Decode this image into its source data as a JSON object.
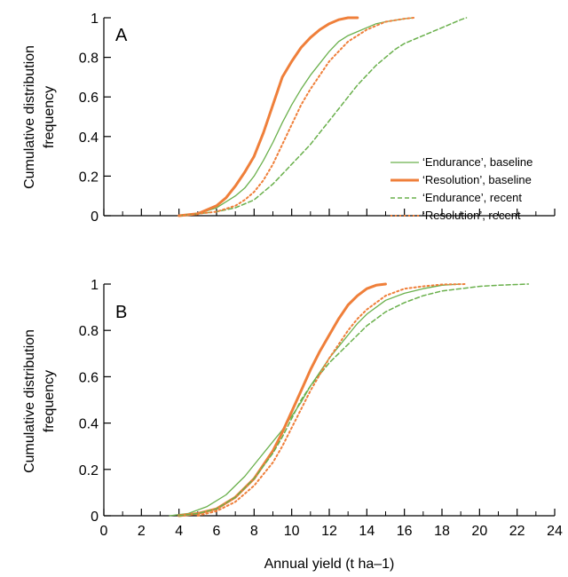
{
  "chart_data": {
    "type": "line",
    "x_axis": {
      "label": "Annual yield (t ha–1)",
      "range": [
        0,
        24
      ],
      "ticks": [
        0,
        2,
        4,
        6,
        8,
        10,
        12,
        14,
        16,
        18,
        20,
        22,
        24
      ]
    },
    "y_axis": {
      "label_line1": "Cumulative distribution",
      "label_line2": "frequency",
      "range": [
        0,
        1
      ],
      "ticks": [
        0,
        0.2,
        0.4,
        0.6,
        0.8,
        1
      ],
      "tick_labels": [
        "0",
        "0.2",
        "0.4",
        "0.6",
        "0.8",
        "1"
      ]
    },
    "grid": false,
    "legend": {
      "placement": "inside-right of panel A",
      "entries": [
        {
          "label": "‘Endurance’, baseline",
          "color": "#6ab04c",
          "style": "solid-thin"
        },
        {
          "label": "‘Resolution’, baseline",
          "color": "#ef7f3a",
          "style": "solid-thick"
        },
        {
          "label": "‘Endurance’, recent",
          "color": "#6ab04c",
          "style": "dashed"
        },
        {
          "label": "‘Resolution’, recent",
          "color": "#ef7f3a",
          "style": "dotted"
        }
      ]
    },
    "panels": [
      {
        "label": "A",
        "series": [
          {
            "legend_index": 0,
            "x": [
              4,
              5,
              6,
              7,
              7.5,
              8,
              8.5,
              9,
              9.5,
              10,
              10.5,
              11,
              11.5,
              12,
              12.5,
              13,
              13.5,
              14,
              14.5,
              15,
              16,
              16.5
            ],
            "y": [
              0,
              0.01,
              0.04,
              0.1,
              0.14,
              0.2,
              0.28,
              0.37,
              0.47,
              0.56,
              0.64,
              0.71,
              0.77,
              0.83,
              0.88,
              0.91,
              0.93,
              0.95,
              0.97,
              0.98,
              0.995,
              1
            ]
          },
          {
            "legend_index": 1,
            "x": [
              4,
              5,
              6,
              6.5,
              7,
              7.5,
              8,
              8.5,
              9,
              9.5,
              10,
              10.5,
              11,
              11.5,
              12,
              12.5,
              13,
              13.5
            ],
            "y": [
              0,
              0.01,
              0.05,
              0.09,
              0.15,
              0.22,
              0.3,
              0.42,
              0.56,
              0.7,
              0.78,
              0.85,
              0.9,
              0.94,
              0.97,
              0.99,
              1,
              1
            ]
          },
          {
            "legend_index": 2,
            "x": [
              4,
              5,
              6,
              7,
              8,
              8.5,
              9,
              9.5,
              10,
              10.5,
              11,
              11.5,
              12,
              12.5,
              13,
              13.5,
              14,
              14.5,
              15,
              15.5,
              16,
              16.5,
              17,
              17.5,
              18,
              18.5,
              19,
              19.3
            ],
            "y": [
              0,
              0.01,
              0.02,
              0.04,
              0.08,
              0.12,
              0.16,
              0.21,
              0.26,
              0.31,
              0.36,
              0.42,
              0.48,
              0.54,
              0.6,
              0.66,
              0.71,
              0.76,
              0.8,
              0.84,
              0.87,
              0.89,
              0.91,
              0.93,
              0.95,
              0.97,
              0.99,
              1
            ]
          },
          {
            "legend_index": 3,
            "x": [
              4,
              5,
              6,
              7,
              7.5,
              8,
              8.5,
              9,
              9.5,
              10,
              10.5,
              11,
              11.5,
              12,
              12.5,
              13,
              13.5,
              14,
              14.5,
              15,
              16,
              16.5
            ],
            "y": [
              0,
              0.01,
              0.02,
              0.05,
              0.08,
              0.12,
              0.18,
              0.26,
              0.36,
              0.46,
              0.56,
              0.64,
              0.71,
              0.78,
              0.83,
              0.88,
              0.91,
              0.94,
              0.96,
              0.98,
              0.995,
              1
            ]
          }
        ]
      },
      {
        "label": "B",
        "series": [
          {
            "legend_index": 0,
            "x": [
              3.5,
              4.5,
              5.5,
              6.5,
              7.5,
              8.5,
              9.5,
              10,
              10.5,
              11,
              11.5,
              12,
              12.5,
              13,
              13.5,
              14,
              15,
              16,
              17,
              18,
              19
            ],
            "y": [
              0,
              0.01,
              0.04,
              0.09,
              0.17,
              0.27,
              0.37,
              0.43,
              0.49,
              0.56,
              0.62,
              0.68,
              0.73,
              0.78,
              0.83,
              0.87,
              0.93,
              0.96,
              0.98,
              0.995,
              1
            ]
          },
          {
            "legend_index": 1,
            "x": [
              4,
              5,
              6,
              7,
              8,
              9,
              9.5,
              10,
              10.5,
              11,
              11.5,
              12,
              12.5,
              13,
              13.5,
              14,
              14.5,
              15
            ],
            "y": [
              0,
              0.01,
              0.03,
              0.08,
              0.16,
              0.28,
              0.36,
              0.45,
              0.54,
              0.63,
              0.71,
              0.78,
              0.85,
              0.91,
              0.95,
              0.98,
              0.995,
              1
            ]
          },
          {
            "legend_index": 2,
            "x": [
              4,
              5,
              6,
              7,
              8,
              9,
              9.5,
              10,
              10.5,
              11,
              11.5,
              12,
              12.5,
              13,
              13.5,
              14,
              15,
              16,
              17,
              18,
              19,
              20,
              21,
              22,
              22.6
            ],
            "y": [
              0,
              0.01,
              0.03,
              0.08,
              0.16,
              0.27,
              0.34,
              0.42,
              0.5,
              0.56,
              0.61,
              0.66,
              0.7,
              0.74,
              0.78,
              0.82,
              0.88,
              0.92,
              0.95,
              0.97,
              0.98,
              0.99,
              0.995,
              0.998,
              1
            ]
          },
          {
            "legend_index": 3,
            "x": [
              5,
              6,
              7,
              8,
              9,
              9.5,
              10,
              10.5,
              11,
              11.5,
              12,
              12.5,
              13,
              13.5,
              14,
              14.5,
              15,
              16,
              17,
              18,
              19.3
            ],
            "y": [
              0,
              0.02,
              0.06,
              0.13,
              0.23,
              0.3,
              0.38,
              0.46,
              0.54,
              0.61,
              0.68,
              0.74,
              0.8,
              0.85,
              0.89,
              0.92,
              0.95,
              0.98,
              0.99,
              0.998,
              1
            ]
          }
        ]
      }
    ]
  }
}
